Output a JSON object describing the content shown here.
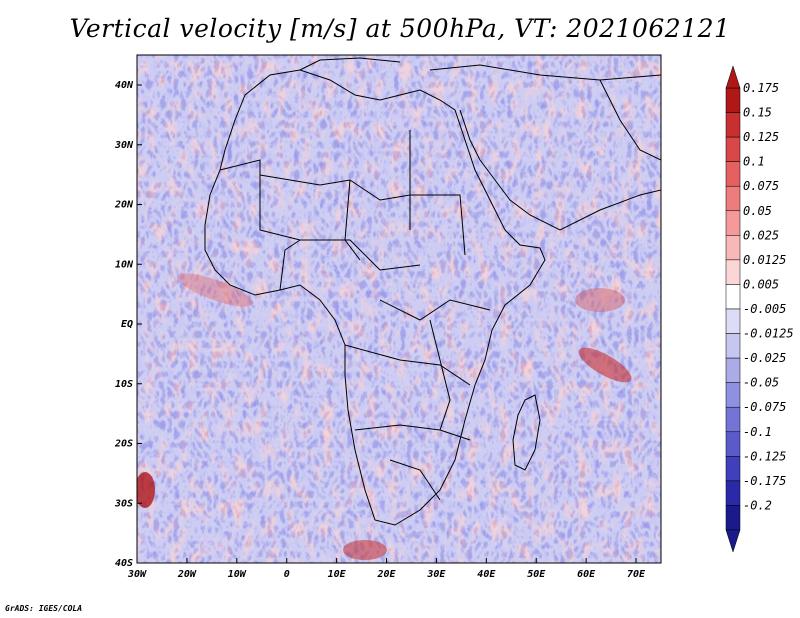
{
  "title": "Vertical velocity [m/s] at 500hPa, VT: 2021062121",
  "credit": "GrADS: IGES/COLA",
  "axes": {
    "x_ticks": [
      "30W",
      "20W",
      "10W",
      "0",
      "10E",
      "20E",
      "30E",
      "40E",
      "50E",
      "60E",
      "70E"
    ],
    "y_ticks": [
      "40N",
      "30N",
      "20N",
      "10N",
      "EQ",
      "10S",
      "20S",
      "30S",
      "40S"
    ]
  },
  "colorbar": {
    "levels": [
      "0.175",
      "0.15",
      "0.125",
      "0.1",
      "0.075",
      "0.05",
      "0.025",
      "0.0125",
      "0.005",
      "-0.005",
      "-0.0125",
      "-0.025",
      "-0.05",
      "-0.075",
      "-0.1",
      "-0.125",
      "-0.175",
      "-0.2"
    ],
    "colors": [
      "#b01818",
      "#c83030",
      "#d84848",
      "#e56060",
      "#ee7c7c",
      "#f49a9a",
      "#f8b8b8",
      "#fcd6d6",
      "#ffffff",
      "#dcdcf6",
      "#c6c6f0",
      "#ababe8",
      "#9090e0",
      "#7474d6",
      "#5a5aca",
      "#4040bc",
      "#2a2aa8",
      "#1a1a8c"
    ]
  },
  "chart_data": {
    "type": "heatmap",
    "title": "Vertical velocity [m/s] at 500hPa, VT: 2021062121",
    "xlim": [
      -30,
      75
    ],
    "ylim": [
      -40,
      45
    ],
    "x_ticks": [
      "30W",
      "20W",
      "10W",
      "0",
      "10E",
      "20E",
      "30E",
      "40E",
      "50E",
      "60E",
      "70E"
    ],
    "y_ticks": [
      "40N",
      "30N",
      "20N",
      "10N",
      "EQ",
      "10S",
      "20S",
      "30S",
      "40S"
    ],
    "legend_placement": "right",
    "colorbar_levels": [
      0.175,
      0.15,
      0.125,
      0.1,
      0.075,
      0.05,
      0.025,
      0.0125,
      0.005,
      -0.005,
      -0.0125,
      -0.025,
      -0.05,
      -0.075,
      -0.1,
      -0.125,
      -0.175,
      -0.2
    ]
  }
}
